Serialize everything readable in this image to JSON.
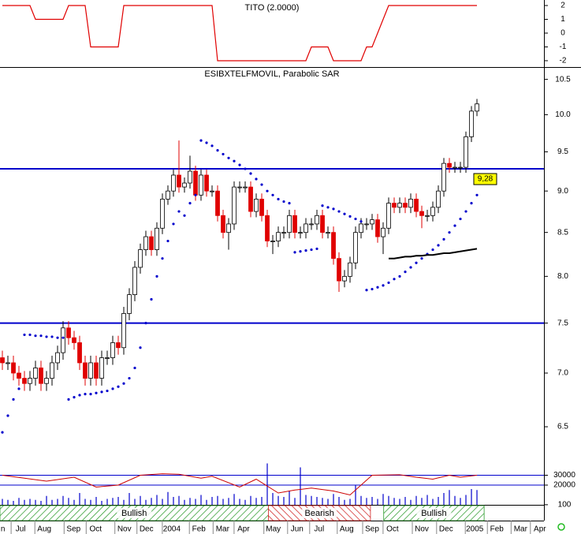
{
  "chart_data": [
    {
      "type": "line",
      "title": "TITO (2.0000)",
      "color": "#e00000",
      "x": [
        0,
        5,
        6,
        11,
        12,
        15,
        16,
        21,
        22,
        38,
        39,
        55,
        56,
        59,
        60,
        65,
        66,
        67,
        70,
        86
      ],
      "values": [
        2,
        2,
        1,
        1,
        2,
        2,
        -1,
        -1,
        2,
        2,
        -2,
        -2,
        -1,
        -1,
        -2,
        -2,
        -1,
        -1,
        2,
        2
      ],
      "ylim": [
        -2.46,
        2.4
      ],
      "yticks": [
        2,
        1,
        0,
        -1,
        -2
      ]
    },
    {
      "type": "candlestick",
      "title": "ESIBXTELFMOVIL, Parabolic SAR",
      "log_scale": true,
      "ylim": [
        6.23,
        10.68
      ],
      "yticks": [
        10.5,
        {
          "value": 10,
          "label": "10.0"
        },
        9.5,
        {
          "value": 9,
          "label": "9.0"
        },
        8.5,
        {
          "value": 8,
          "label": "8.0"
        },
        7.5,
        {
          "value": 7,
          "label": "7.0"
        },
        6.5
      ],
      "xlim": [
        -0.43,
        98.14
      ],
      "xticks": [
        {
          "value": 0.1,
          "label": "n"
        },
        {
          "value": 3.3,
          "label": "Jul"
        },
        {
          "value": 7.6,
          "label": "Aug"
        },
        {
          "value": 12.9,
          "label": "Sep"
        },
        {
          "value": 16.9,
          "label": "Oct"
        },
        {
          "value": 22.1,
          "label": "Nov"
        },
        {
          "value": 26.1,
          "label": "Dec"
        },
        {
          "value": 30.7,
          "label": "2004"
        },
        {
          "value": 35.6,
          "label": "Feb"
        },
        {
          "value": 39.9,
          "label": "Mar"
        },
        {
          "value": 43.7,
          "label": "Apr"
        },
        {
          "value": 49.1,
          "label": "May"
        },
        {
          "value": 53.4,
          "label": "Jun"
        },
        {
          "value": 57.4,
          "label": "Jul"
        },
        {
          "value": 62.4,
          "label": "Aug"
        },
        {
          "value": 67,
          "label": "Sep"
        },
        {
          "value": 70.7,
          "label": "Oct"
        },
        {
          "value": 76,
          "label": "Nov"
        },
        {
          "value": 80.4,
          "label": "Dec"
        },
        {
          "value": 85.6,
          "label": "2005"
        },
        {
          "value": 89.6,
          "label": "Feb"
        },
        {
          "value": 93.9,
          "label": "Mar"
        },
        {
          "value": 97.4,
          "label": "Apr"
        }
      ],
      "up_color": "#ffffff",
      "down_color": "#e00000",
      "open": [
        7.15,
        7.1,
        7.1,
        7.0,
        6.95,
        6.9,
        6.95,
        7.05,
        6.9,
        6.95,
        7.1,
        7.2,
        7.45,
        7.35,
        7.3,
        7.1,
        6.95,
        7.1,
        6.95,
        7.15,
        7.15,
        7.3,
        7.25,
        7.6,
        7.8,
        8.1,
        8.3,
        8.45,
        8.3,
        8.55,
        8.9,
        9.0,
        9.2,
        9.05,
        9.1,
        9.25,
        8.95,
        9.2,
        9.0,
        9.0,
        8.7,
        8.5,
        8.6,
        9.05,
        9.05,
        9.05,
        8.75,
        8.9,
        8.7,
        8.4,
        8.4,
        8.5,
        8.5,
        8.7,
        8.5,
        8.5,
        8.6,
        8.6,
        8.7,
        8.5,
        8.5,
        8.2,
        7.95,
        8.0,
        8.15,
        8.5,
        8.6,
        8.6,
        8.65,
        8.45,
        8.55,
        8.85,
        8.8,
        8.85,
        8.8,
        8.9,
        8.75,
        8.7,
        8.7,
        8.8,
        9.0,
        9.35,
        9.3,
        9.3,
        9.3,
        9.7,
        10.05
      ],
      "high": [
        7.22,
        7.17,
        7.17,
        7.07,
        7.02,
        7.02,
        7.12,
        7.12,
        7.02,
        7.17,
        7.27,
        7.52,
        7.52,
        7.42,
        7.37,
        7.17,
        7.17,
        7.17,
        7.22,
        7.22,
        7.37,
        7.37,
        7.67,
        7.87,
        8.17,
        8.37,
        8.52,
        8.52,
        8.62,
        8.97,
        9.07,
        9.27,
        9.65,
        9.17,
        9.45,
        9.32,
        9.27,
        9.27,
        9.07,
        9.07,
        8.77,
        8.67,
        9.12,
        9.12,
        9.12,
        9.12,
        8.97,
        8.97,
        8.77,
        8.47,
        8.57,
        8.57,
        8.77,
        8.77,
        8.57,
        8.67,
        8.67,
        8.77,
        8.77,
        8.57,
        8.57,
        8.27,
        8.07,
        8.22,
        8.57,
        8.67,
        8.67,
        8.72,
        8.72,
        8.62,
        8.92,
        8.92,
        8.92,
        8.92,
        8.97,
        8.97,
        8.82,
        8.77,
        8.87,
        9.07,
        9.42,
        9.42,
        9.37,
        9.37,
        9.77,
        10.12,
        10.22
      ],
      "low": [
        7.03,
        7.03,
        6.93,
        6.88,
        6.83,
        6.83,
        6.88,
        6.83,
        6.83,
        6.88,
        7.03,
        7.13,
        7.28,
        7.23,
        7.03,
        6.88,
        6.88,
        6.88,
        6.88,
        7.08,
        7.08,
        7.18,
        7.18,
        7.53,
        7.73,
        8.03,
        8.23,
        8.23,
        8.23,
        8.48,
        8.83,
        8.93,
        8.98,
        8.98,
        9.03,
        8.88,
        8.88,
        8.93,
        8.93,
        8.63,
        8.43,
        8.3,
        8.53,
        8.98,
        8.98,
        8.68,
        8.68,
        8.63,
        8.33,
        8.25,
        8.33,
        8.43,
        8.43,
        8.43,
        8.43,
        8.43,
        8.53,
        8.53,
        8.43,
        8.43,
        8.13,
        7.83,
        7.88,
        7.93,
        8.08,
        8.43,
        8.53,
        8.53,
        8.38,
        8.25,
        8.48,
        8.73,
        8.73,
        8.73,
        8.73,
        8.68,
        8.55,
        8.63,
        8.63,
        8.73,
        8.93,
        9.23,
        9.23,
        9.23,
        9.23,
        9.63,
        9.98
      ],
      "close": [
        7.1,
        7.1,
        7.0,
        6.95,
        6.9,
        6.95,
        7.05,
        6.9,
        6.95,
        7.1,
        7.2,
        7.45,
        7.35,
        7.3,
        7.1,
        6.95,
        7.1,
        6.95,
        7.15,
        7.15,
        7.3,
        7.25,
        7.6,
        7.8,
        8.1,
        8.3,
        8.45,
        8.3,
        8.55,
        8.9,
        9.0,
        9.2,
        9.05,
        9.1,
        9.25,
        8.95,
        9.2,
        9.0,
        9.0,
        8.7,
        8.5,
        8.6,
        9.05,
        9.05,
        9.05,
        8.75,
        8.9,
        8.7,
        8.4,
        8.4,
        8.5,
        8.5,
        8.7,
        8.5,
        8.5,
        8.6,
        8.6,
        8.7,
        8.5,
        8.5,
        8.2,
        7.95,
        8.0,
        8.15,
        8.5,
        8.6,
        8.6,
        8.65,
        8.45,
        8.55,
        8.85,
        8.8,
        8.85,
        8.8,
        8.9,
        8.75,
        8.7,
        8.7,
        8.8,
        9.0,
        9.35,
        9.3,
        9.3,
        9.3,
        9.7,
        10.05,
        10.15
      ],
      "sar_color": "#0000cc",
      "sar": [
        6.45,
        6.6,
        6.75,
        6.85,
        7.38,
        7.38,
        7.37,
        7.37,
        7.36,
        7.36,
        7.35,
        7.35,
        6.75,
        6.77,
        6.79,
        6.8,
        6.8,
        6.81,
        6.82,
        6.83,
        6.85,
        6.87,
        6.9,
        6.95,
        7.05,
        7.25,
        7.5,
        7.75,
        8.0,
        8.2,
        8.4,
        8.6,
        8.75,
        8.7,
        8.85,
        8.95,
        9.65,
        9.62,
        9.58,
        9.52,
        9.47,
        9.42,
        9.38,
        9.33,
        9.28,
        9.22,
        9.15,
        9.08,
        9.0,
        8.95,
        8.9,
        8.87,
        8.85,
        8.27,
        8.28,
        8.29,
        8.3,
        8.31,
        8.82,
        8.8,
        8.78,
        8.75,
        8.72,
        8.69,
        8.66,
        8.63,
        7.85,
        7.86,
        7.88,
        7.9,
        7.93,
        7.97,
        8.0,
        8.05,
        8.1,
        8.15,
        8.2,
        8.25,
        8.3,
        8.35,
        8.42,
        8.5,
        8.58,
        8.66,
        8.75,
        8.85,
        8.95
      ],
      "ma_color": "#000000",
      "ma": [
        null,
        null,
        null,
        null,
        null,
        null,
        null,
        null,
        null,
        null,
        null,
        null,
        null,
        null,
        null,
        null,
        null,
        null,
        null,
        null,
        null,
        null,
        null,
        null,
        null,
        null,
        null,
        null,
        null,
        null,
        null,
        null,
        null,
        null,
        null,
        null,
        null,
        null,
        null,
        null,
        null,
        null,
        null,
        null,
        null,
        null,
        null,
        null,
        null,
        null,
        null,
        null,
        null,
        null,
        null,
        null,
        null,
        null,
        null,
        null,
        null,
        null,
        null,
        null,
        null,
        null,
        null,
        null,
        null,
        null,
        8.2,
        8.2,
        8.21,
        8.22,
        8.22,
        8.23,
        8.23,
        8.24,
        8.24,
        8.25,
        8.26,
        8.26,
        8.27,
        8.28,
        8.29,
        8.3,
        8.31
      ],
      "hline_color": "#0000cc",
      "hlines": [
        9.28,
        7.5
      ],
      "price_label": "9,28",
      "volume": {
        "color": "#0000cc",
        "ylim": [
          0,
          40000
        ],
        "yticks": [
          30000,
          20000,
          100
        ],
        "values": [
          6000,
          5000,
          4000,
          7000,
          5000,
          6000,
          5000,
          4000,
          9000,
          5000,
          6000,
          9000,
          7000,
          5000,
          12000,
          6000,
          5000,
          8000,
          4000,
          6000,
          7000,
          8000,
          5000,
          12000,
          6000,
          9000,
          5000,
          7000,
          10000,
          6000,
          13000,
          8000,
          9000,
          5000,
          7000,
          6000,
          10000,
          5000,
          8000,
          9000,
          6000,
          7000,
          11000,
          6000,
          5000,
          9000,
          7000,
          8000,
          42000,
          12000,
          9000,
          8000,
          14000,
          7000,
          38000,
          10000,
          9000,
          8000,
          7000,
          6000,
          11000,
          8000,
          5000,
          6000,
          20000,
          9000,
          7000,
          8000,
          6000,
          11000,
          9000,
          7000,
          6000,
          8000,
          5000,
          9000,
          7000,
          10000,
          6000,
          8000,
          12000,
          15000,
          9000,
          7000,
          10000,
          16000,
          15000
        ]
      },
      "oscillator": {
        "color": "#cc0000",
        "x": [
          0,
          4,
          8,
          13,
          17,
          21,
          25,
          29,
          32,
          36,
          38,
          43,
          46,
          50,
          53,
          56,
          60,
          63,
          67,
          72,
          75,
          78,
          81,
          83,
          86
        ],
        "values": [
          30000,
          27000,
          24000,
          28000,
          18000,
          20000,
          30000,
          31500,
          31000,
          27000,
          29000,
          18000,
          26000,
          12000,
          15000,
          17000,
          14000,
          10000,
          30000,
          30500,
          28000,
          26000,
          30000,
          28000,
          30000
        ]
      },
      "zones": [
        {
          "label": "Bullish",
          "color": "#2a9a2a",
          "from": -0.43,
          "to": 48.2
        },
        {
          "label": "Bearish",
          "color": "#d02020",
          "from": 48.2,
          "to": 66.7
        },
        {
          "label": "Bullish",
          "color": "#2a9a2a",
          "from": 69.1,
          "to": 87.3
        }
      ]
    }
  ]
}
